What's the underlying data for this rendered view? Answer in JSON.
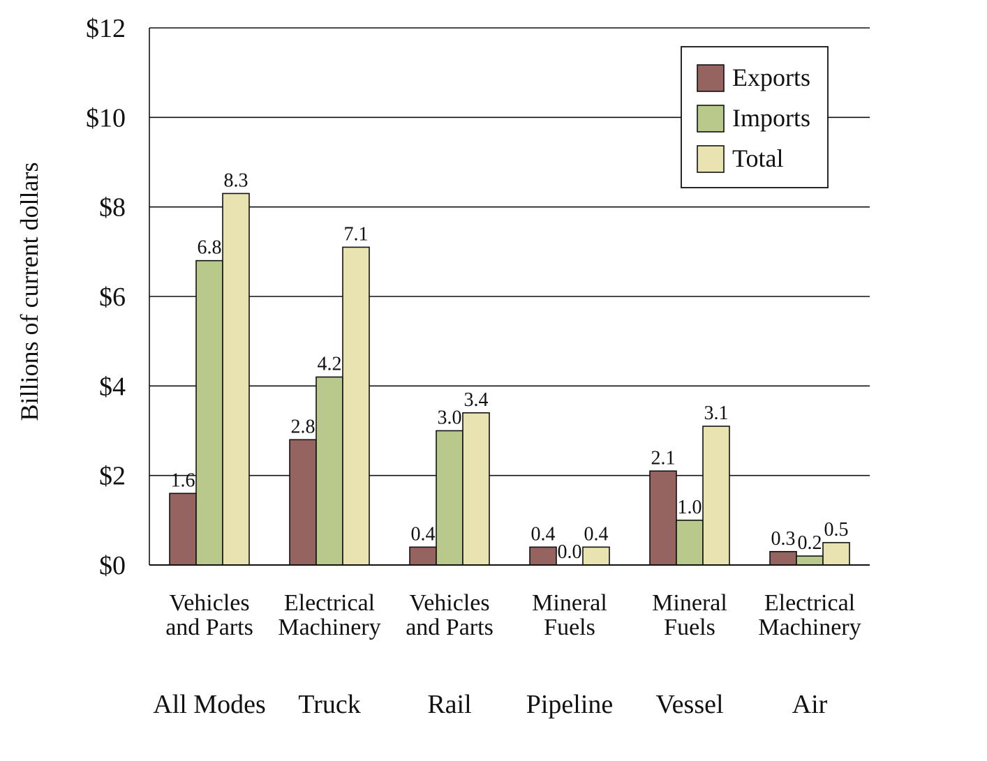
{
  "chart_data": {
    "type": "bar",
    "ylabel": "Billions of current dollars",
    "ylim": [
      0,
      12
    ],
    "yticks": [
      0,
      2,
      4,
      6,
      8,
      10,
      12
    ],
    "ytick_labels": [
      "$0",
      "$2",
      "$4",
      "$6",
      "$8",
      "$10",
      "$12"
    ],
    "grid": true,
    "legend_position": "top-right",
    "categories": [
      {
        "line1": "Vehicles",
        "line2": "and Parts",
        "mode": "All Modes"
      },
      {
        "line1": "Electrical",
        "line2": "Machinery",
        "mode": "Truck"
      },
      {
        "line1": "Vehicles",
        "line2": "and Parts",
        "mode": "Rail"
      },
      {
        "line1": "Mineral",
        "line2": "Fuels",
        "mode": "Pipeline"
      },
      {
        "line1": "Mineral",
        "line2": "Fuels",
        "mode": "Vessel"
      },
      {
        "line1": "Electrical",
        "line2": "Machinery",
        "mode": "Air"
      }
    ],
    "series": [
      {
        "name": "Exports",
        "color": "#956360",
        "values": [
          1.6,
          2.8,
          0.4,
          0.4,
          2.1,
          0.3
        ],
        "labels": [
          "1.6",
          "2.8",
          "0.4",
          "0.4",
          "2.1",
          "0.3"
        ]
      },
      {
        "name": "Imports",
        "color": "#b8c98b",
        "values": [
          6.8,
          4.2,
          3.0,
          0.0,
          1.0,
          0.2
        ],
        "labels": [
          "6.8",
          "4.2",
          "3.0",
          "0.0",
          "1.0",
          "0.2"
        ]
      },
      {
        "name": "Total",
        "color": "#e8e3b0",
        "values": [
          8.3,
          7.1,
          3.4,
          0.4,
          3.1,
          0.5
        ],
        "labels": [
          "8.3",
          "7.1",
          "3.4",
          "0.4",
          "3.1",
          "0.5"
        ]
      }
    ]
  }
}
